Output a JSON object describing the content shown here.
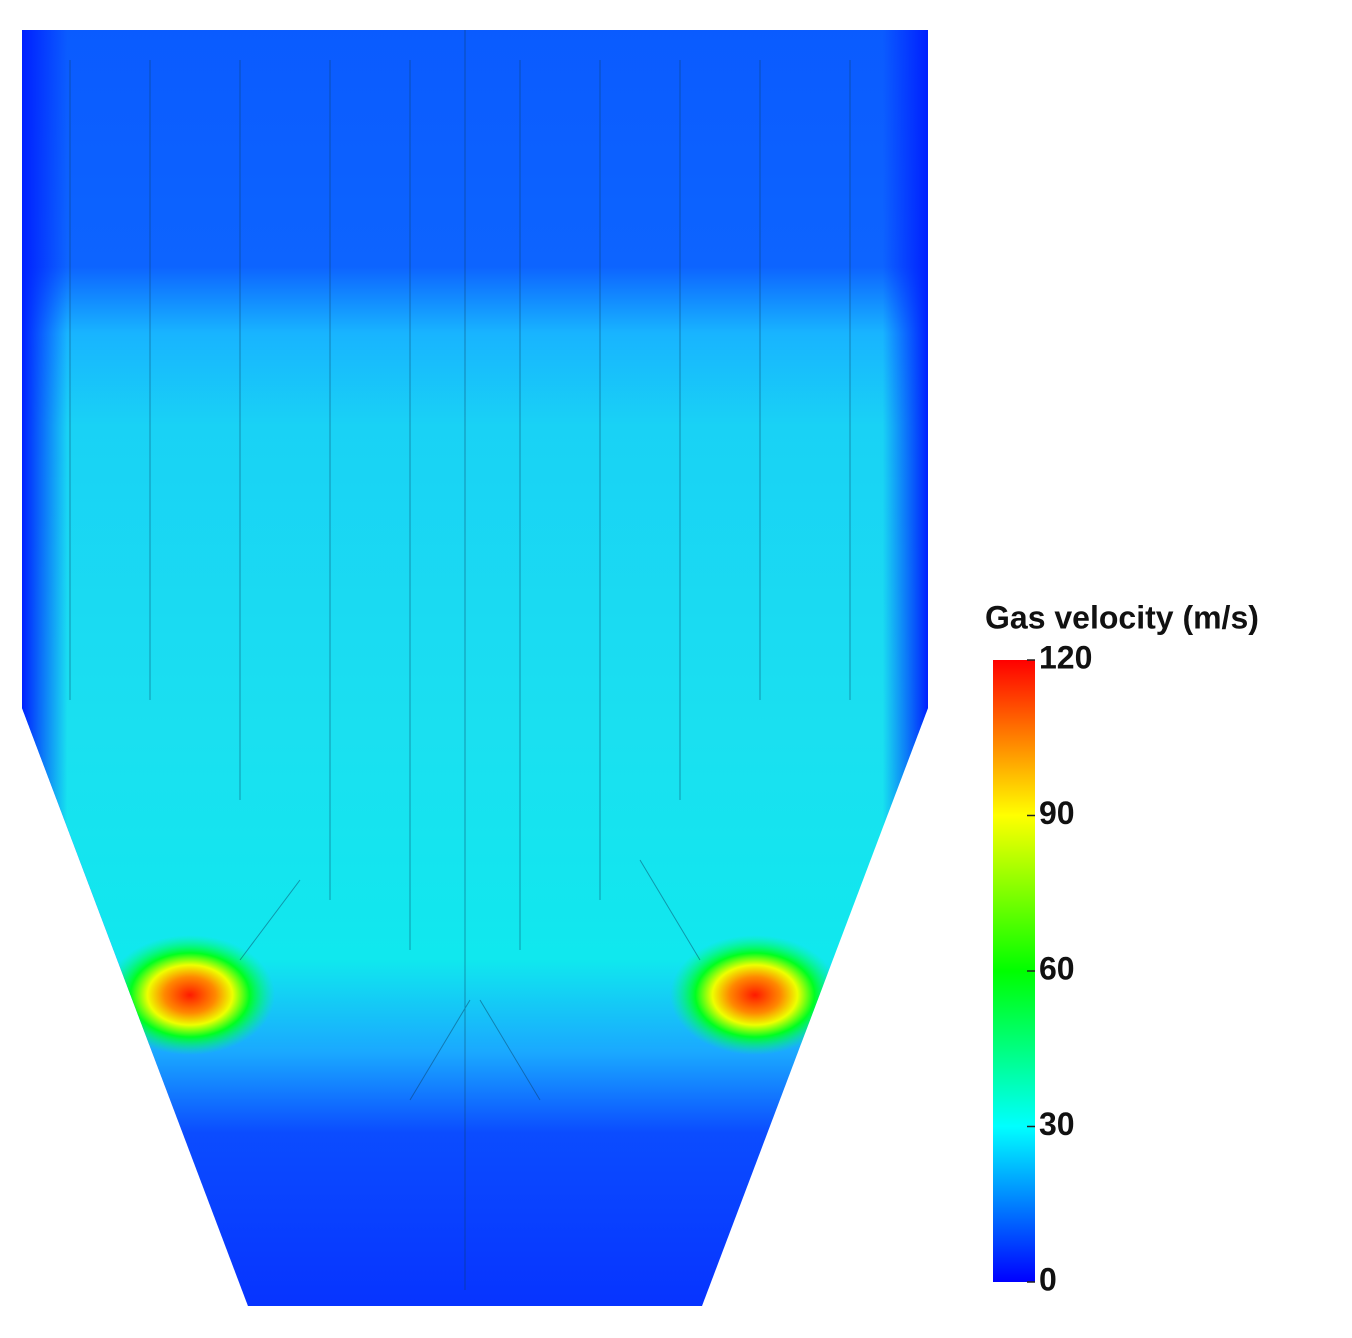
{
  "chart_data": {
    "type": "contour",
    "colorbar_title": "Gas velocity (m/s)",
    "clim": [
      0,
      120
    ],
    "cticks": [
      0,
      30,
      60,
      90,
      120
    ],
    "colors": [
      "#0000ff",
      "#00ffff",
      "#00ff00",
      "#ffff00",
      "#ff0000"
    ]
  }
}
